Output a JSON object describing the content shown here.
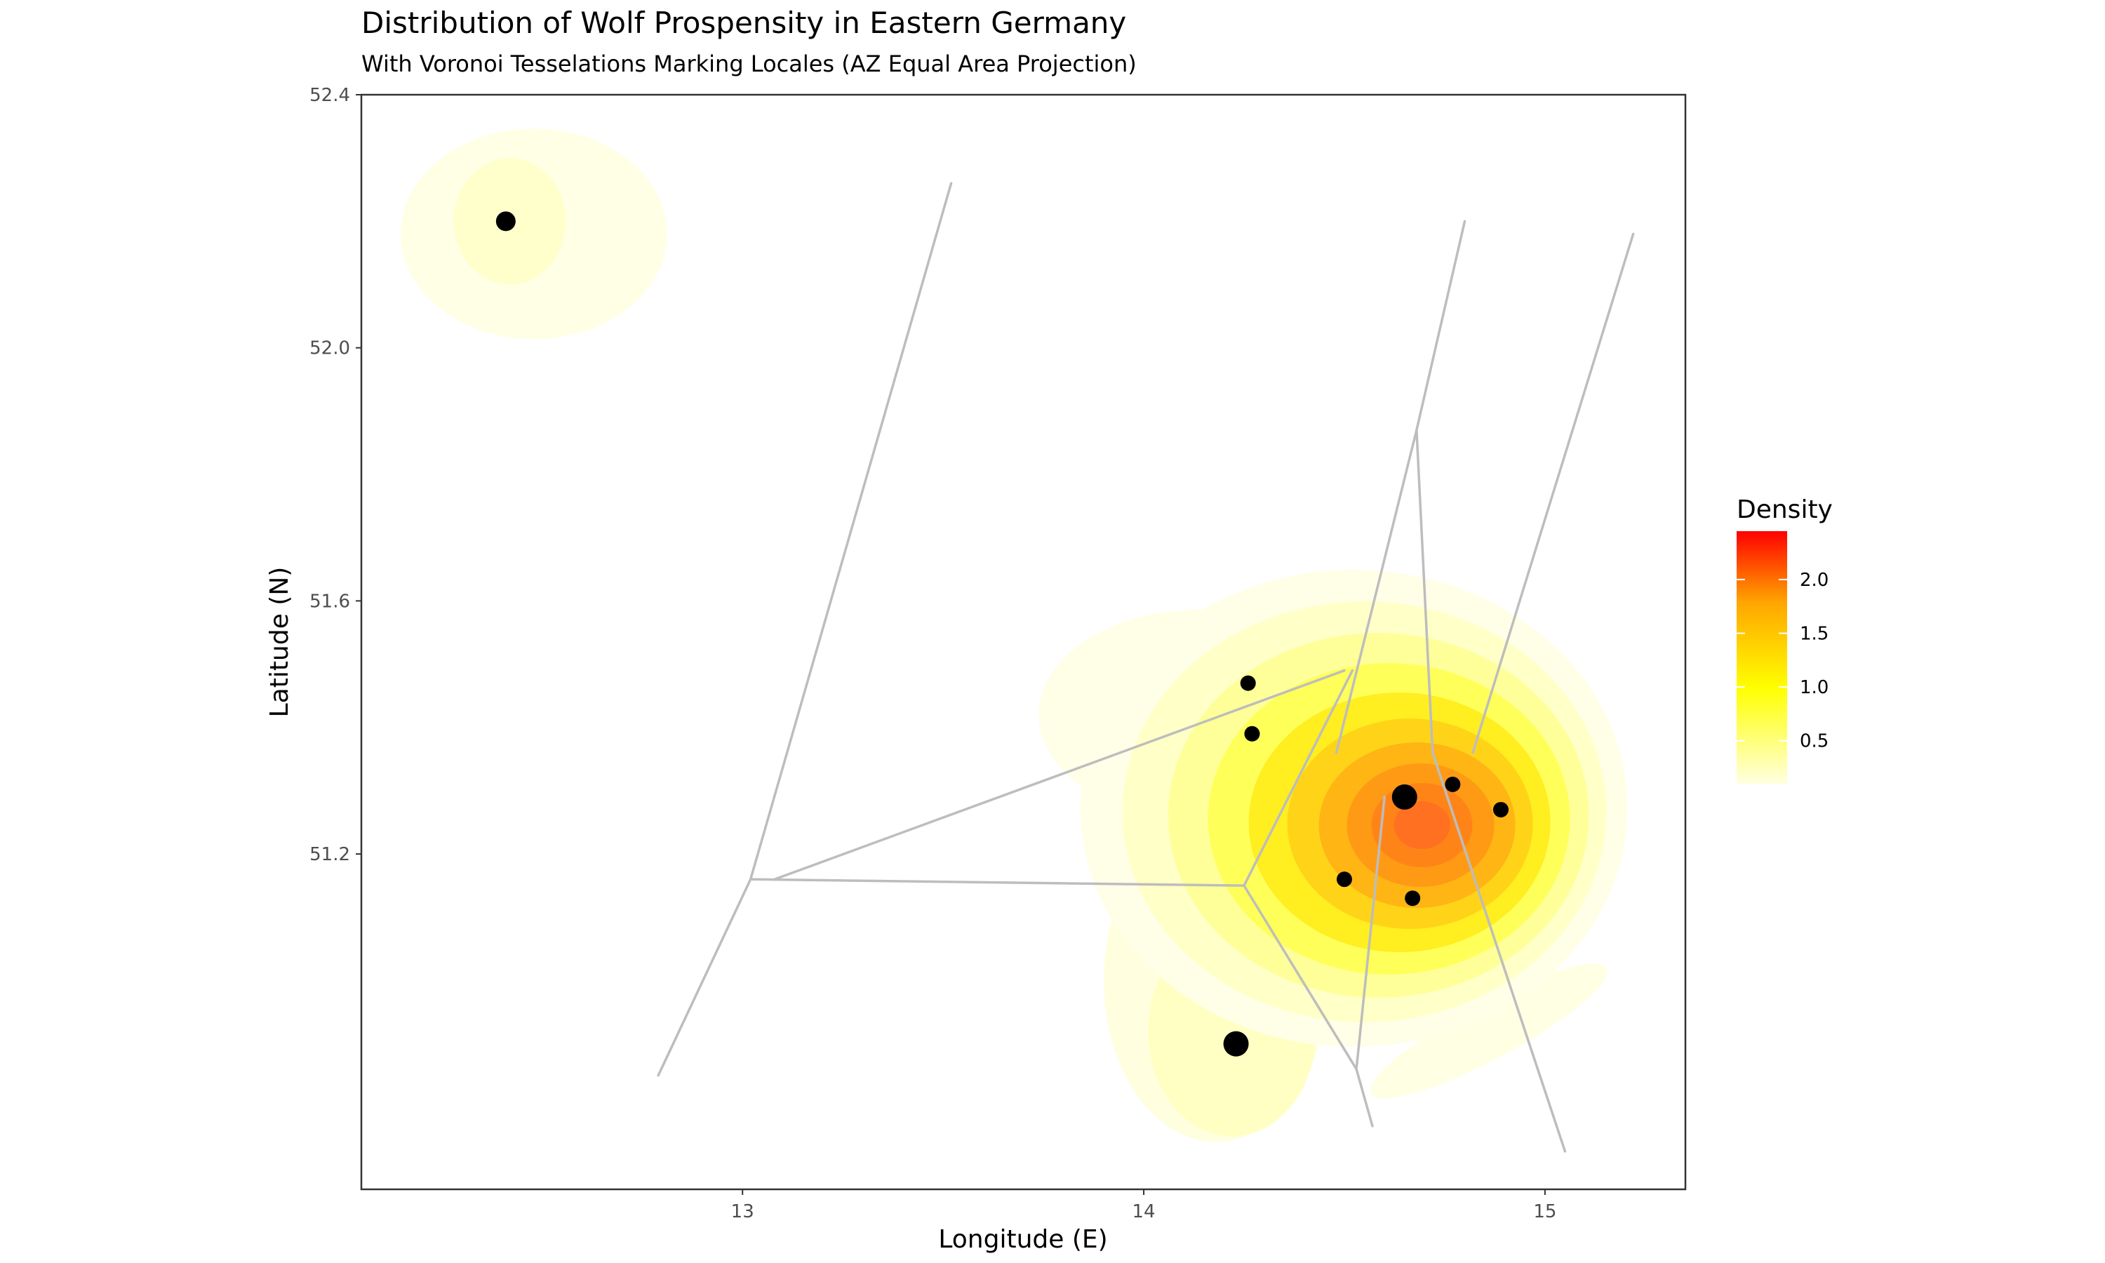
{
  "chart_data": {
    "type": "density-contour-scatter",
    "title": "Distribution of Wolf Prospensity in Eastern Germany",
    "subtitle": "With Voronoi Tesselations Marking Locales (AZ Equal Area Projection)",
    "xlabel": "Longitude (E)",
    "ylabel": "Latitude (N)",
    "xlim": [
      12.05,
      15.35
    ],
    "ylim": [
      50.67,
      52.4
    ],
    "x_ticks": [
      13,
      14,
      15
    ],
    "x_tick_labels": [
      "13",
      "14",
      "15"
    ],
    "y_ticks": [
      51.2,
      51.6,
      52.0,
      52.4
    ],
    "y_tick_labels": [
      "51.2",
      "51.6",
      "52.0",
      "52.4"
    ],
    "grid": false,
    "legend": {
      "title": "Density",
      "position": "right",
      "colorscale": [
        "#ffffe0",
        "#ffff00",
        "#ffa500",
        "#ff0000"
      ],
      "range": [
        0.1,
        2.45
      ],
      "ticks": [
        2.0,
        1.5,
        1.0,
        0.5
      ],
      "tick_labels": [
        "2.0",
        "1.5",
        "1.0",
        "0.5"
      ]
    },
    "points": [
      {
        "x": 12.41,
        "y": 52.2,
        "size": "medium"
      },
      {
        "x": 14.26,
        "y": 51.47,
        "size": "small"
      },
      {
        "x": 14.27,
        "y": 51.39,
        "size": "small"
      },
      {
        "x": 14.65,
        "y": 51.29,
        "size": "large"
      },
      {
        "x": 14.77,
        "y": 51.31,
        "size": "small"
      },
      {
        "x": 14.89,
        "y": 51.27,
        "size": "small"
      },
      {
        "x": 14.5,
        "y": 51.16,
        "size": "small"
      },
      {
        "x": 14.67,
        "y": 51.13,
        "size": "small"
      },
      {
        "x": 14.23,
        "y": 50.9,
        "size": "large"
      }
    ],
    "voronoi_edges": [
      [
        [
          13.52,
          52.26
        ],
        [
          13.02,
          51.16
        ]
      ],
      [
        [
          13.02,
          51.16
        ],
        [
          12.79,
          50.85
        ]
      ],
      [
        [
          13.02,
          51.16
        ],
        [
          14.25,
          51.15
        ]
      ],
      [
        [
          13.08,
          51.16
        ],
        [
          14.5,
          51.49
        ]
      ],
      [
        [
          14.25,
          51.15
        ],
        [
          14.52,
          51.49
        ]
      ],
      [
        [
          14.25,
          51.15
        ],
        [
          14.53,
          50.86
        ]
      ],
      [
        [
          14.53,
          50.86
        ],
        [
          14.57,
          50.77
        ]
      ],
      [
        [
          14.53,
          50.86
        ],
        [
          14.6,
          51.29
        ]
      ],
      [
        [
          14.48,
          51.36
        ],
        [
          14.68,
          51.87
        ]
      ],
      [
        [
          14.68,
          51.87
        ],
        [
          14.8,
          52.2
        ]
      ],
      [
        [
          14.68,
          51.87
        ],
        [
          14.72,
          51.36
        ]
      ],
      [
        [
          14.72,
          51.36
        ],
        [
          15.05,
          50.73
        ]
      ],
      [
        [
          14.82,
          51.36
        ],
        [
          15.22,
          52.18
        ]
      ]
    ],
    "density_peak": {
      "x": 14.69,
      "y": 51.25,
      "max": 2.45
    }
  }
}
